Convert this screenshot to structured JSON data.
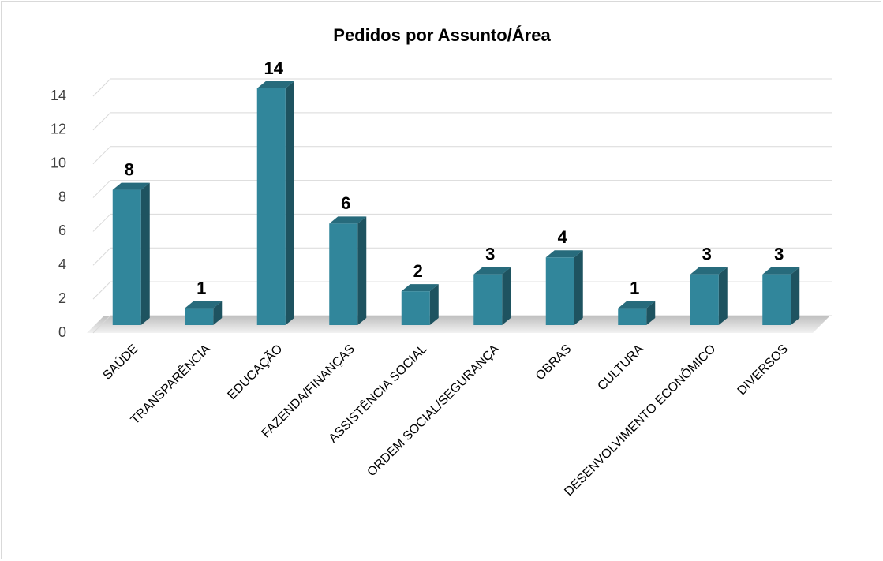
{
  "chart_data": {
    "type": "bar3d",
    "title": "Pedidos por Assunto/Área",
    "categories": [
      "SAÚDE",
      "TRANSPARÊNCIA",
      "EDUCAÇÃO",
      "FAZENDA/FINANÇAS",
      "ASSISTÊNCIA SOCIAL",
      "ORDEM SOCIAL/SEGURANÇA",
      "OBRAS",
      "CULTURA",
      "DESENVOLVIMENTO ECONÔMICO",
      "DIVERSOS"
    ],
    "values": [
      8,
      1,
      14,
      6,
      2,
      3,
      4,
      1,
      3,
      3
    ],
    "color": "#31869b",
    "ylim": [
      0,
      14
    ],
    "yticks": [
      0,
      2,
      4,
      6,
      8,
      10,
      12,
      14
    ],
    "grid": true
  }
}
